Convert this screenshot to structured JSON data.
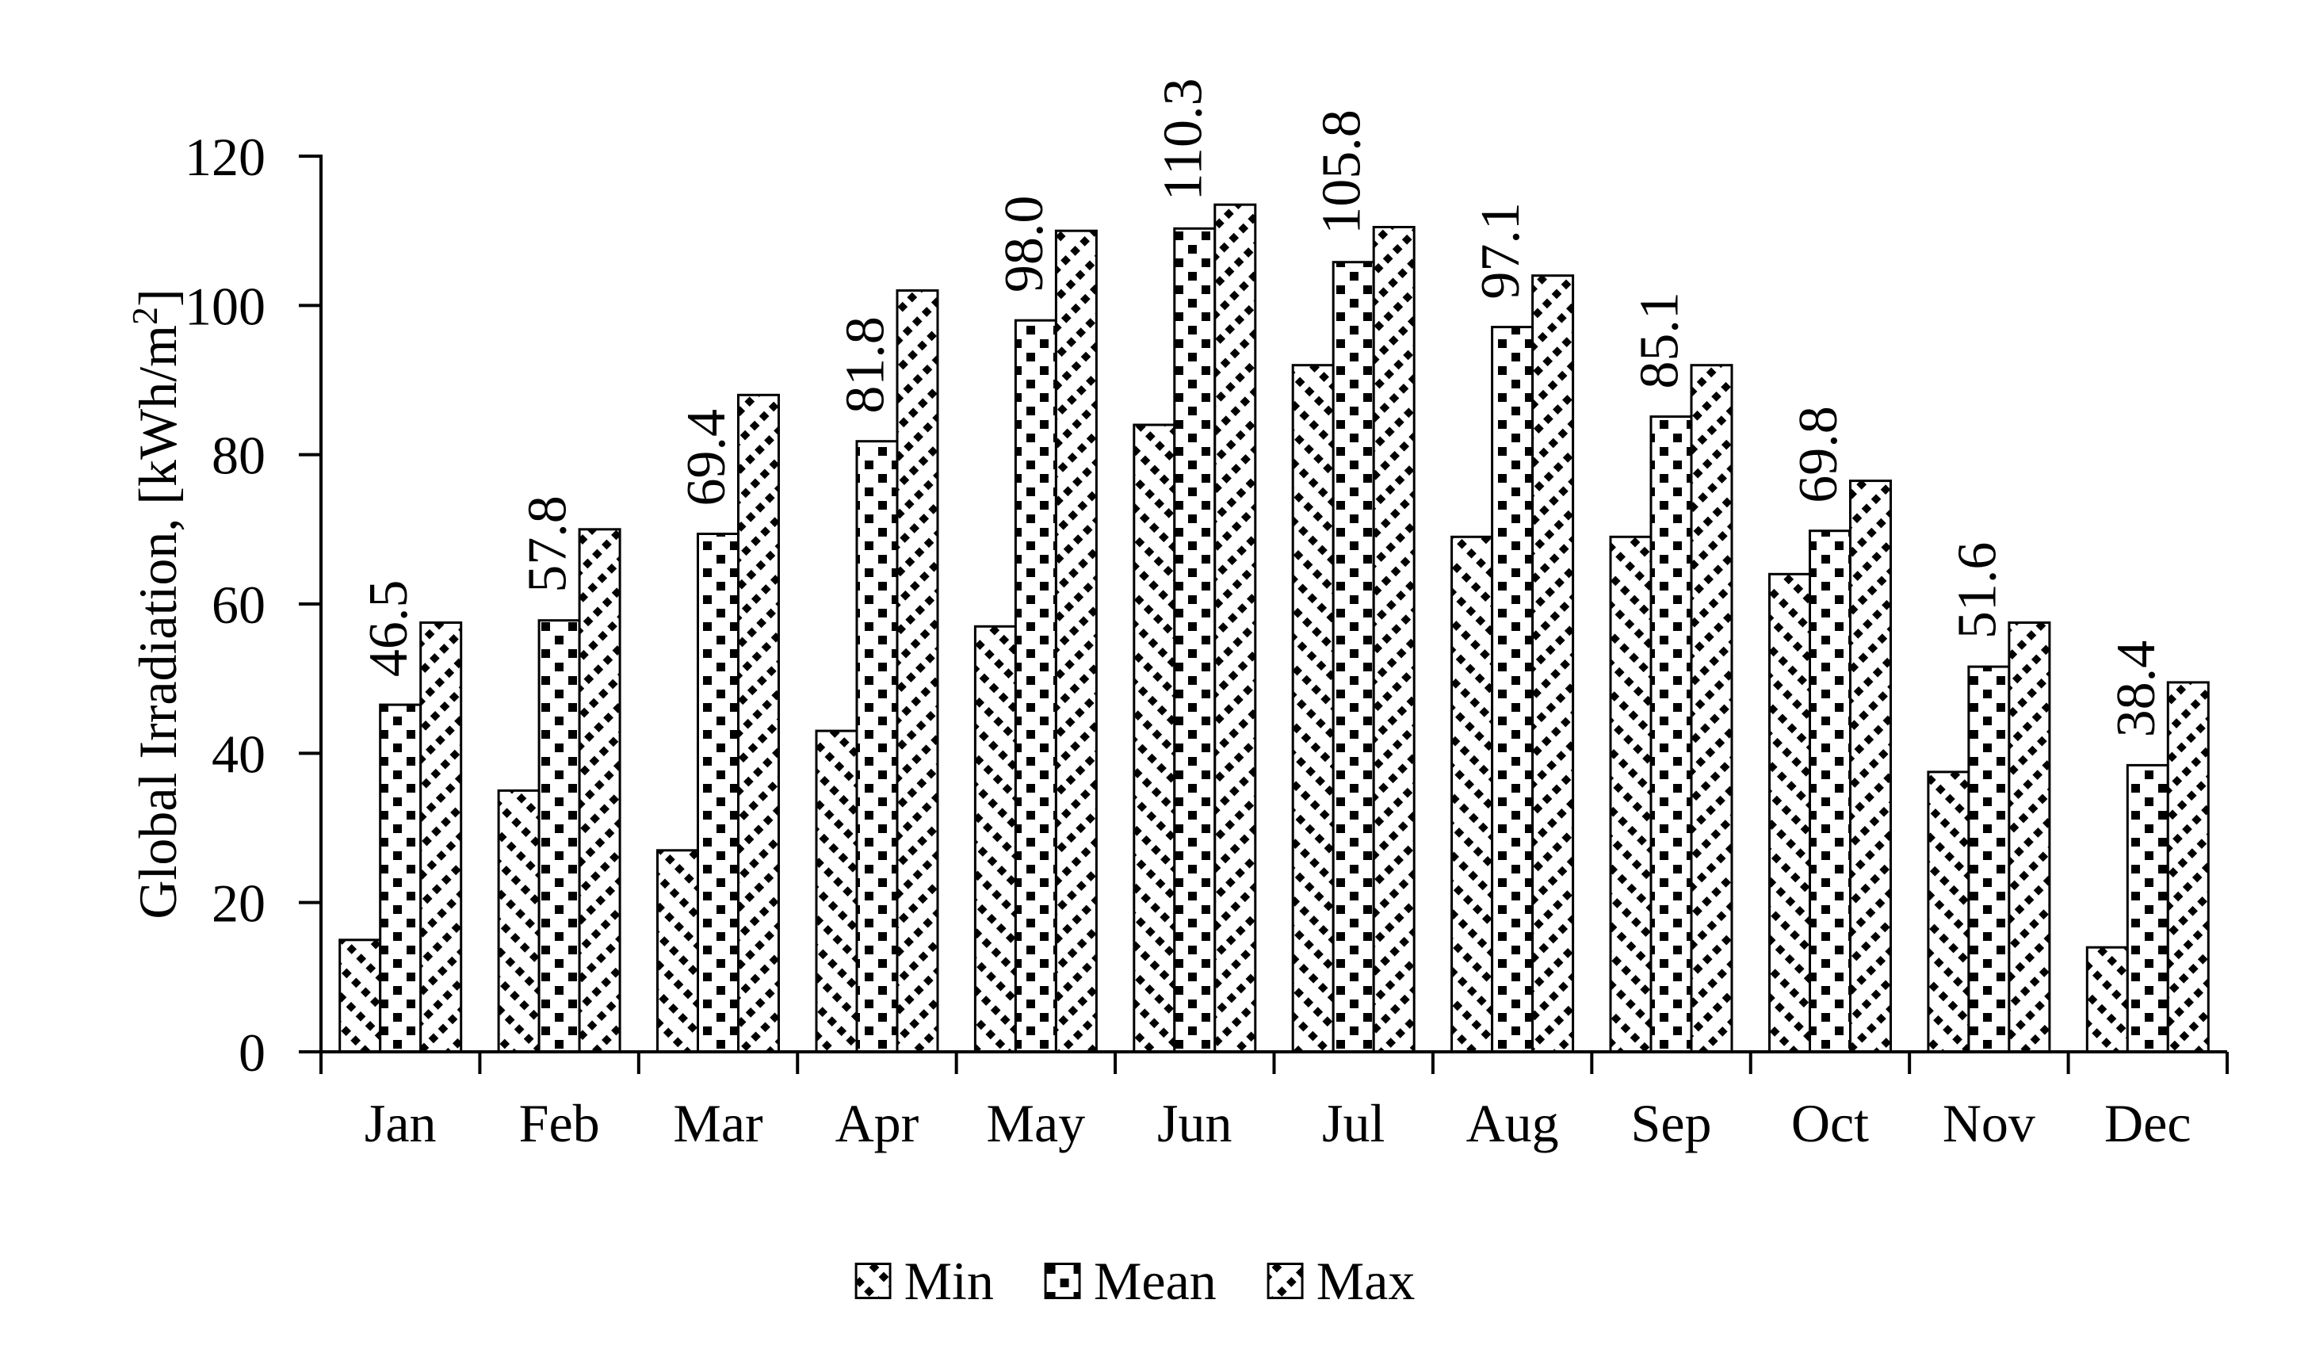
{
  "chart_data": {
    "type": "bar",
    "title": "",
    "categories": [
      "Jan",
      "Feb",
      "Mar",
      "Apr",
      "May",
      "Jun",
      "Jul",
      "Aug",
      "Sep",
      "Oct",
      "Nov",
      "Dec"
    ],
    "series": [
      {
        "name": "Min",
        "pattern": "diagonal-down-hatch",
        "values": [
          15,
          35,
          27,
          43,
          57,
          84,
          92,
          69,
          69,
          64,
          37.5,
          14
        ]
      },
      {
        "name": "Mean",
        "pattern": "dots",
        "values": [
          46.5,
          57.8,
          69.4,
          81.8,
          98.0,
          110.3,
          105.8,
          97.1,
          85.1,
          69.8,
          51.6,
          38.4
        ],
        "data_labels": [
          "46.5",
          "57.8",
          "69.4",
          "81.8",
          "98.0",
          "110.3",
          "105.8",
          "97.1",
          "85.1",
          "69.8",
          "51.6",
          "38.4"
        ]
      },
      {
        "name": "Max",
        "pattern": "diagonal-up-hatch",
        "values": [
          57.5,
          70,
          88,
          102,
          110,
          113.5,
          110.5,
          104,
          92,
          76.5,
          57.5,
          49.5
        ]
      }
    ],
    "xlabel": "",
    "ylabel": "Global Irradiation, [kWh/m²]",
    "ylim": [
      0,
      120
    ],
    "ytick_step": 20,
    "yticks": [
      "0",
      "20",
      "40",
      "60",
      "80",
      "100",
      "120"
    ],
    "grid": false,
    "legend_position": "bottom",
    "data_label_rotation_deg": -90,
    "colors": {
      "foreground": "#000000",
      "background": "#ffffff"
    }
  }
}
